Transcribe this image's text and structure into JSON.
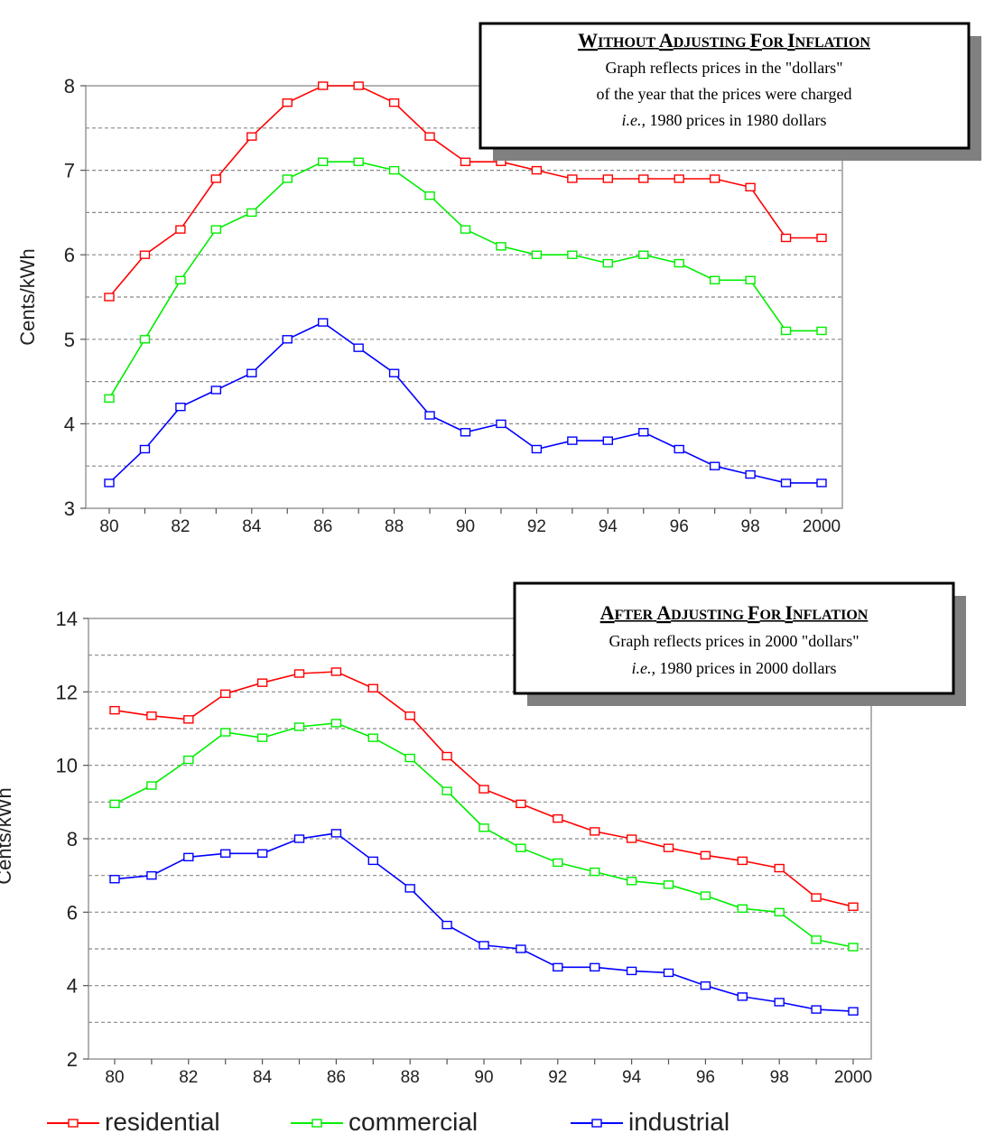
{
  "chart_data": [
    {
      "type": "line",
      "title": "Without Adjusting for Inflation",
      "notes": [
        "Graph reflects prices in the \"dollars\"",
        "of the year that the prices were charged"
      ],
      "note_italic": "i.e.,",
      "note_rest": " 1980 prices in 1980 dollars",
      "xlabel": "",
      "ylabel": "Cents/kWh",
      "categories": [
        "80",
        "81",
        "82",
        "83",
        "84",
        "85",
        "86",
        "87",
        "88",
        "89",
        "90",
        "91",
        "92",
        "93",
        "94",
        "95",
        "96",
        "97",
        "98",
        "99",
        "2000"
      ],
      "tick_labels": [
        "80",
        "82",
        "84",
        "86",
        "88",
        "90",
        "92",
        "94",
        "96",
        "98",
        "2000"
      ],
      "ylim": [
        3,
        8
      ],
      "yticks": [
        3,
        4,
        5,
        6,
        7,
        8
      ],
      "series": [
        {
          "name": "residential",
          "color": "#ff0000",
          "values": [
            5.5,
            6.0,
            6.3,
            6.9,
            7.4,
            7.8,
            8.0,
            8.0,
            7.8,
            7.4,
            7.1,
            7.1,
            7.0,
            6.9,
            6.9,
            6.9,
            6.9,
            6.9,
            6.8,
            6.2,
            6.2
          ]
        },
        {
          "name": "commercial",
          "color": "#00ee00",
          "values": [
            4.3,
            5.0,
            5.7,
            6.3,
            6.5,
            6.9,
            7.1,
            7.1,
            7.0,
            6.7,
            6.3,
            6.1,
            6.0,
            6.0,
            5.9,
            6.0,
            5.9,
            5.7,
            5.7,
            5.1,
            5.1
          ]
        },
        {
          "name": "industrial",
          "color": "#0000ff",
          "values": [
            3.3,
            3.7,
            4.2,
            4.4,
            4.6,
            5.0,
            5.2,
            4.9,
            4.6,
            4.1,
            3.9,
            4.0,
            3.7,
            3.8,
            3.8,
            3.9,
            3.7,
            3.5,
            3.4,
            3.3,
            3.3
          ]
        }
      ]
    },
    {
      "type": "line",
      "title": "After Adjusting for Inflation",
      "notes": [
        "Graph reflects prices in 2000 \"dollars\""
      ],
      "note_italic": "i.e.,",
      "note_rest": " 1980 prices in 2000 dollars",
      "xlabel": "",
      "ylabel": "Cents/kWh",
      "categories": [
        "80",
        "81",
        "82",
        "83",
        "84",
        "85",
        "86",
        "87",
        "88",
        "89",
        "90",
        "91",
        "92",
        "93",
        "94",
        "95",
        "96",
        "97",
        "98",
        "99",
        "2000"
      ],
      "tick_labels": [
        "80",
        "82",
        "84",
        "86",
        "88",
        "90",
        "92",
        "94",
        "96",
        "98",
        "2000"
      ],
      "ylim": [
        2,
        14
      ],
      "yticks": [
        2,
        4,
        6,
        8,
        10,
        12,
        14
      ],
      "series": [
        {
          "name": "residential",
          "color": "#ff0000",
          "values": [
            11.5,
            11.35,
            11.25,
            11.95,
            12.25,
            12.5,
            12.55,
            12.1,
            11.35,
            10.25,
            9.35,
            8.95,
            8.55,
            8.2,
            8.0,
            7.75,
            7.55,
            7.4,
            7.2,
            6.4,
            6.15
          ]
        },
        {
          "name": "commercial",
          "color": "#00ee00",
          "values": [
            8.95,
            9.45,
            10.15,
            10.9,
            10.75,
            11.05,
            11.15,
            10.75,
            10.2,
            9.3,
            8.3,
            7.75,
            7.35,
            7.1,
            6.85,
            6.75,
            6.45,
            6.1,
            6.0,
            5.25,
            5.05
          ]
        },
        {
          "name": "industrial",
          "color": "#0000ff",
          "values": [
            6.9,
            7.0,
            7.5,
            7.6,
            7.6,
            8.0,
            8.15,
            7.4,
            6.65,
            5.65,
            5.1,
            5.0,
            4.5,
            4.5,
            4.4,
            4.35,
            4.0,
            3.7,
            3.55,
            3.35,
            3.3
          ]
        }
      ]
    }
  ],
  "legend": [
    {
      "name": "residential",
      "color": "#ff0000"
    },
    {
      "name": "commercial",
      "color": "#00ee00"
    },
    {
      "name": "industrial",
      "color": "#0000ff"
    }
  ]
}
